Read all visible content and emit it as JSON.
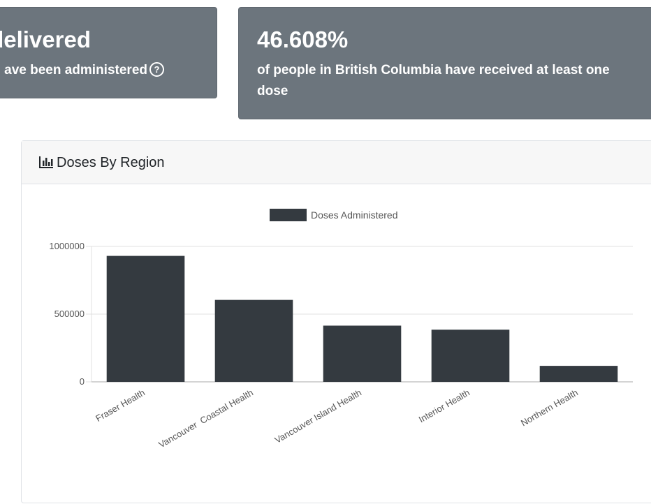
{
  "stats": [
    {
      "value": "delivered",
      "caption": "ave been administered",
      "help_icon": "question-circle-icon"
    },
    {
      "value": "46.608%",
      "caption": "of people in British Columbia have received at least one dose"
    }
  ],
  "chart_card": {
    "title": "Doses By Region",
    "icon": "bar-chart-icon"
  },
  "colors": {
    "card_bg": "#6c757d",
    "bar": "#343a40",
    "grid": "#e0e0e0"
  },
  "chart_data": {
    "type": "bar",
    "legend": {
      "position": "top",
      "entries": [
        "Doses Administered"
      ]
    },
    "categories": [
      "Fraser Health",
      "Vancouver  Coastal Health",
      "Vancouver Island Health",
      "Interior Health",
      "Northern Health"
    ],
    "series": [
      {
        "name": "Doses Administered",
        "values": [
          930000,
          605000,
          415000,
          385000,
          118000
        ]
      }
    ],
    "yticks": [
      "1000000",
      "500000",
      "0"
    ],
    "ylim": [
      0,
      1000000
    ],
    "grid": true
  }
}
